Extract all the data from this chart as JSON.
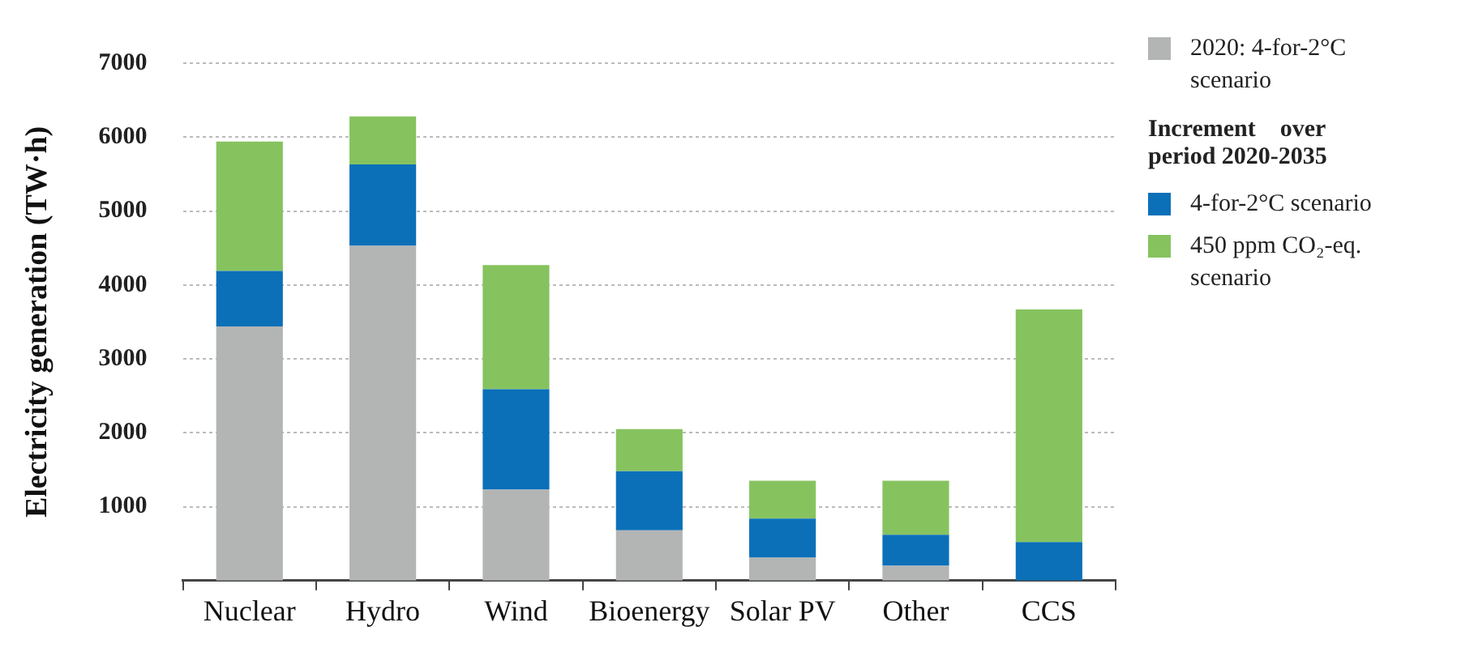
{
  "chart_data": {
    "type": "bar",
    "stacked": true,
    "ylabel": "Electricity generation (TW·h)",
    "legend_title": "Increment    over period 2020-2035",
    "categories": [
      "Nuclear",
      "Hydro",
      "Wind",
      "Bioenergy",
      "Solar PV",
      "Other",
      "CCS"
    ],
    "series": [
      {
        "name": "2020: 4-for-2°C scenario",
        "color": "#b3b5b5",
        "values": [
          3440,
          4530,
          1230,
          680,
          310,
          200,
          0
        ]
      },
      {
        "name": "4-for-2°C scenario",
        "color": "#0b70b8",
        "values": [
          750,
          1100,
          1360,
          800,
          530,
          420,
          520
        ]
      },
      {
        "name": "450 ppm CO₂-eq. scenario",
        "color": "#86c35f",
        "values": [
          1750,
          650,
          1680,
          570,
          510,
          730,
          3150
        ]
      }
    ],
    "ylim": [
      0,
      7000
    ],
    "yticks": [
      1000,
      2000,
      3000,
      4000,
      5000,
      6000,
      7000
    ],
    "grid": "y",
    "legend": "right"
  }
}
